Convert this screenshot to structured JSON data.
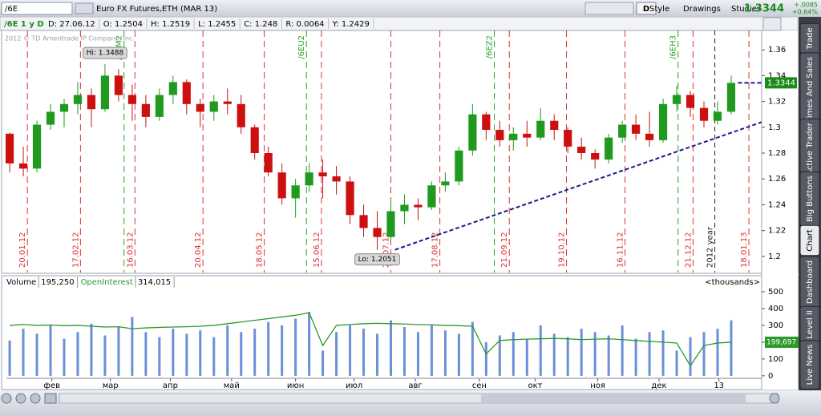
{
  "toolbar": {
    "symbol": "/6E",
    "description": "Euro FX Futures,ETH (MAR 13)",
    "period_button": "D",
    "buttons": [
      "Style",
      "Drawings",
      "Studies"
    ],
    "last": "1.3344",
    "change": "+.0085",
    "change_pct": "+0.64%"
  },
  "info_bar": {
    "symbol_period": "/6E 1 y D",
    "fields": [
      "D: 27.06.12",
      "O: 1.2504",
      "H: 1.2519",
      "L: 1.2455",
      "C: 1.248",
      "R: 0.0064",
      "Y: 1.2429"
    ],
    "copyright": "2012 © TD Ameritrade IP Company, Inc."
  },
  "side_tabs": [
    "Trade",
    "Times And Sales",
    "Active Trader",
    "Big Buttons",
    "Chart",
    "Dashboard",
    "Level II",
    "Live News"
  ],
  "chart_data": [
    {
      "type": "candlestick",
      "x": [
        0,
        1,
        2,
        3,
        4,
        5,
        6,
        7,
        8,
        9,
        10,
        11,
        12,
        13,
        14,
        15,
        16,
        17,
        18,
        19,
        20,
        21,
        22,
        23,
        24,
        25,
        26,
        27,
        28,
        29,
        30,
        31,
        32,
        33,
        34,
        35,
        36,
        37,
        38,
        39,
        40,
        41,
        42,
        43,
        44,
        45,
        46,
        47,
        48,
        49,
        50,
        51,
        52,
        53
      ],
      "open": [
        1.295,
        1.272,
        1.268,
        1.302,
        1.312,
        1.318,
        1.325,
        1.314,
        1.34,
        1.325,
        1.318,
        1.308,
        1.325,
        1.335,
        1.318,
        1.312,
        1.32,
        1.318,
        1.3,
        1.28,
        1.265,
        1.245,
        1.255,
        1.265,
        1.262,
        1.258,
        1.232,
        1.222,
        1.215,
        1.235,
        1.24,
        1.238,
        1.255,
        1.258,
        1.282,
        1.31,
        1.298,
        1.29,
        1.295,
        1.292,
        1.305,
        1.298,
        1.285,
        1.28,
        1.275,
        1.292,
        1.302,
        1.295,
        1.29,
        1.318,
        1.325,
        1.315,
        1.305,
        1.312
      ],
      "high": [
        1.296,
        1.285,
        1.305,
        1.318,
        1.322,
        1.335,
        1.33,
        1.3488,
        1.345,
        1.333,
        1.325,
        1.33,
        1.34,
        1.337,
        1.322,
        1.325,
        1.33,
        1.325,
        1.302,
        1.285,
        1.272,
        1.26,
        1.272,
        1.275,
        1.27,
        1.262,
        1.24,
        1.235,
        1.245,
        1.248,
        1.245,
        1.258,
        1.265,
        1.285,
        1.318,
        1.312,
        1.305,
        1.3,
        1.305,
        1.315,
        1.31,
        1.3,
        1.292,
        1.283,
        1.295,
        1.305,
        1.31,
        1.312,
        1.322,
        1.332,
        1.328,
        1.32,
        1.32,
        1.34
      ],
      "low": [
        1.265,
        1.262,
        1.265,
        1.298,
        1.3,
        1.31,
        1.3,
        1.312,
        1.32,
        1.305,
        1.3,
        1.305,
        1.318,
        1.31,
        1.3,
        1.305,
        1.31,
        1.295,
        1.275,
        1.262,
        1.24,
        1.23,
        1.25,
        1.245,
        1.248,
        1.225,
        1.215,
        1.2051,
        1.212,
        1.225,
        1.228,
        1.236,
        1.25,
        1.255,
        1.278,
        1.29,
        1.285,
        1.282,
        1.285,
        1.29,
        1.29,
        1.28,
        1.275,
        1.268,
        1.272,
        1.288,
        1.29,
        1.285,
        1.288,
        1.312,
        1.308,
        1.3,
        1.302,
        1.31
      ],
      "close": [
        1.272,
        1.268,
        1.302,
        1.312,
        1.318,
        1.325,
        1.314,
        1.34,
        1.325,
        1.318,
        1.308,
        1.325,
        1.335,
        1.318,
        1.312,
        1.32,
        1.318,
        1.3,
        1.28,
        1.265,
        1.245,
        1.255,
        1.265,
        1.262,
        1.258,
        1.232,
        1.222,
        1.215,
        1.235,
        1.24,
        1.238,
        1.255,
        1.258,
        1.282,
        1.31,
        1.298,
        1.29,
        1.295,
        1.292,
        1.305,
        1.298,
        1.285,
        1.28,
        1.275,
        1.292,
        1.302,
        1.295,
        1.29,
        1.318,
        1.325,
        1.315,
        1.305,
        1.312,
        1.3344
      ],
      "up_color": "#1f9a1f",
      "down_color": "#cc1010",
      "xlim": [
        -0.24,
        55.24
      ],
      "ylim": [
        1.1875,
        1.3725
      ],
      "yticks": [
        1.2,
        1.22,
        1.24,
        1.26,
        1.28,
        1.3,
        1.32,
        1.34,
        1.36
      ],
      "xticks": [
        {
          "value": 1.3,
          "label": "20.01.12"
        },
        {
          "value": 5.2,
          "label": "17.02.12"
        },
        {
          "value": 9.2,
          "label": "16.03.12"
        },
        {
          "value": 14.2,
          "label": "20.04.12"
        },
        {
          "value": 18.7,
          "label": "18.05.12"
        },
        {
          "value": 22.9,
          "label": "15.06.12"
        },
        {
          "value": 28,
          "label": "20.07.12"
        },
        {
          "value": 31.6,
          "label": "17.08.12"
        },
        {
          "value": 36.7,
          "label": "21.09.12"
        },
        {
          "value": 40.9,
          "label": "19.10.12"
        },
        {
          "value": 45.2,
          "label": "16.11.12"
        },
        {
          "value": 50.2,
          "label": "21.12.12"
        },
        {
          "value": 54.3,
          "label": "18.01.13"
        }
      ],
      "date_line_color": "#e03030",
      "roll_markers": [
        {
          "value": 8.4,
          "label": "/6EM2"
        },
        {
          "value": 21.8,
          "label": "/6EU2"
        },
        {
          "value": 35.6,
          "label": "/6EZ2"
        },
        {
          "value": 49.1,
          "label": "/6EH3"
        }
      ],
      "roll_color": "#2ca02c",
      "year_marker": {
        "value": 51.8,
        "label": "2012 year"
      },
      "annotations": [
        "Hi: 1.3488",
        "Lo: 1.2051"
      ],
      "trendline": {
        "x": [
          28.3,
          55.24
        ],
        "y": [
          1.2051,
          1.304
        ],
        "color": "#1a1a8c"
      },
      "price_line": {
        "x": [
          53.5,
          55.24
        ],
        "y": 1.3344
      },
      "last_color": "#1a8a1a"
    },
    {
      "type": "bar",
      "x": [
        0,
        1,
        2,
        3,
        4,
        5,
        6,
        7,
        8,
        9,
        10,
        11,
        12,
        13,
        14,
        15,
        16,
        17,
        18,
        19,
        20,
        21,
        22,
        23,
        24,
        25,
        26,
        27,
        28,
        29,
        30,
        31,
        32,
        33,
        34,
        35,
        36,
        37,
        38,
        39,
        40,
        41,
        42,
        43,
        44,
        45,
        46,
        47,
        48,
        49,
        50,
        51,
        52,
        53
      ],
      "series": [
        {
          "name": "Volume",
          "type": "bar",
          "readout": "195,250",
          "color": "#6b8fd8",
          "values": [
            210,
            280,
            250,
            300,
            220,
            260,
            310,
            240,
            290,
            350,
            260,
            230,
            280,
            250,
            270,
            230,
            300,
            260,
            280,
            320,
            300,
            340,
            380,
            150,
            260,
            300,
            280,
            250,
            330,
            290,
            260,
            300,
            270,
            250,
            320,
            200,
            240,
            260,
            220,
            300,
            250,
            230,
            280,
            260,
            240,
            300,
            220,
            260,
            270,
            150,
            230,
            260,
            280,
            330
          ]
        },
        {
          "name": "OpenInterest",
          "type": "line",
          "readout": "314,015",
          "color": "#2a9a2a",
          "last_label": "199,697",
          "values": [
            300,
            305,
            300,
            302,
            298,
            300,
            295,
            290,
            292,
            280,
            285,
            288,
            290,
            292,
            295,
            300,
            310,
            320,
            330,
            340,
            350,
            360,
            375,
            180,
            300,
            305,
            310,
            312,
            310,
            308,
            305,
            303,
            300,
            298,
            295,
            130,
            210,
            215,
            218,
            220,
            222,
            220,
            215,
            218,
            220,
            215,
            210,
            205,
            200,
            195,
            60,
            180,
            195,
            199.697
          ]
        }
      ],
      "unit_label": "<thousands>",
      "xlim": [
        -0.24,
        55.24
      ],
      "ylim": [
        -15,
        557
      ],
      "yticks": [
        0,
        100,
        200,
        300,
        400,
        500
      ],
      "xticks": [
        {
          "value": 3.1,
          "label": "фев"
        },
        {
          "value": 7.4,
          "label": "мар"
        },
        {
          "value": 11.8,
          "label": "апр"
        },
        {
          "value": 16.3,
          "label": "май"
        },
        {
          "value": 21,
          "label": "июн"
        },
        {
          "value": 25.3,
          "label": "июл"
        },
        {
          "value": 29.8,
          "label": "авг"
        },
        {
          "value": 34.5,
          "label": "сен"
        },
        {
          "value": 38.6,
          "label": "окт"
        },
        {
          "value": 43.2,
          "label": "ноя"
        },
        {
          "value": 47.7,
          "label": "дек"
        },
        {
          "value": 52.1,
          "label": "13"
        }
      ]
    }
  ]
}
